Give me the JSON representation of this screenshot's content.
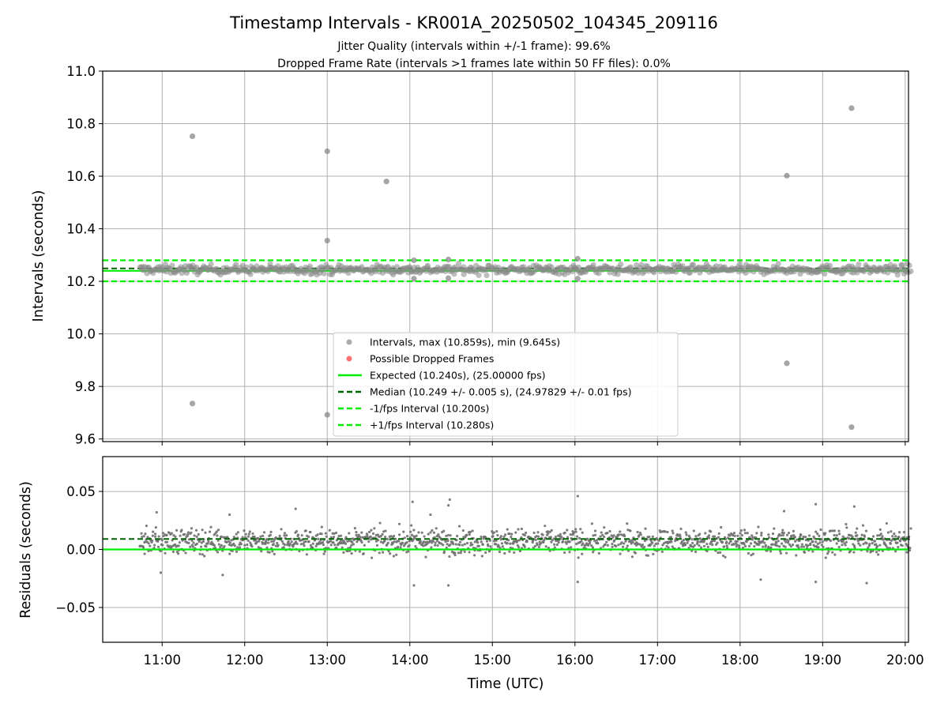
{
  "chart_data": [
    {
      "type": "scatter",
      "title": "Timestamp Intervals - KR001A_20250502_104345_209116",
      "subtitle_lines": [
        "Jitter Quality (intervals within +/-1 frame): 99.6%",
        "Dropped Frame Rate (intervals >1 frames late within 50 FF files): 0.0%"
      ],
      "xlabel": "",
      "ylabel": "Intervals (seconds)",
      "x_range_hours": [
        10.28,
        20.04
      ],
      "ylim": [
        9.59,
        11.0
      ],
      "yticks": [
        9.6,
        9.8,
        10.0,
        10.2,
        10.4,
        10.6,
        10.8,
        11.0
      ],
      "ytick_labels": [
        "9.6",
        "9.8",
        "10.0",
        "10.2",
        "10.4",
        "10.6",
        "10.8",
        "11.0"
      ],
      "grid": true,
      "legend_position": "lower center",
      "legend": [
        "Intervals, max (10.859s), min (9.645s)",
        "Possible Dropped Frames",
        "Expected (10.240s), (25.00000 fps)",
        "Median (10.249 +/- 0.005 s), (24.97829 +/- 0.01 fps)",
        "-1/fps Interval (10.200s)",
        "+1/fps Interval (10.280s)"
      ],
      "lines": {
        "expected": 10.24,
        "median": 10.249,
        "minus_one_fps": 10.2,
        "plus_one_fps": 10.28
      },
      "series": [
        {
          "name": "Intervals, max (10.859s), min (9.645s)",
          "band": {
            "x_start": "10:44",
            "x_end": "20:04",
            "y_center": 10.245,
            "y_spread": 0.025
          },
          "outliers": [
            {
              "x": "11:22",
              "y": 10.752
            },
            {
              "x": "11:22",
              "y": 9.735
            },
            {
              "x": "13:00",
              "y": 10.695
            },
            {
              "x": "13:00",
              "y": 10.355
            },
            {
              "x": "13:00",
              "y": 9.692
            },
            {
              "x": "13:43",
              "y": 10.58
            },
            {
              "x": "14:03",
              "y": 10.28
            },
            {
              "x": "14:03",
              "y": 10.21
            },
            {
              "x": "14:28",
              "y": 10.283
            },
            {
              "x": "14:28",
              "y": 10.212
            },
            {
              "x": "16:02",
              "y": 10.286
            },
            {
              "x": "16:02",
              "y": 10.21
            },
            {
              "x": "18:34",
              "y": 10.602
            },
            {
              "x": "18:34",
              "y": 9.888
            },
            {
              "x": "19:21",
              "y": 10.859
            },
            {
              "x": "19:21",
              "y": 9.645
            }
          ]
        },
        {
          "name": "Possible Dropped Frames",
          "points": []
        }
      ],
      "colors": {
        "intervals": "#888888",
        "dropped": "#ff3333",
        "expected": "#00ee00",
        "median": "#006400",
        "bounds": "#00ee00"
      }
    },
    {
      "type": "scatter",
      "xlabel": "Time (UTC)",
      "ylabel": "Residuals (seconds)",
      "x_range_hours": [
        10.28,
        20.04
      ],
      "xticks": [
        "11:00",
        "12:00",
        "13:00",
        "14:00",
        "15:00",
        "16:00",
        "17:00",
        "18:00",
        "19:00",
        "20:00"
      ],
      "ylim": [
        -0.08,
        0.08
      ],
      "yticks": [
        -0.05,
        0.0,
        0.05
      ],
      "ytick_labels": [
        "−0.05",
        "0.00",
        "0.05"
      ],
      "grid": true,
      "lines": {
        "expected": 0.0,
        "median": 0.009
      },
      "series": [
        {
          "name": "",
          "band": {
            "x_start": "10:44",
            "x_end": "20:04",
            "y_center": 0.007,
            "y_spread": 0.012
          },
          "outliers": [
            {
              "x": "10:56",
              "y": 0.032
            },
            {
              "x": "11:49",
              "y": 0.03
            },
            {
              "x": "12:37",
              "y": 0.035
            },
            {
              "x": "14:02",
              "y": 0.041
            },
            {
              "x": "14:15",
              "y": 0.03
            },
            {
              "x": "14:28",
              "y": 0.038
            },
            {
              "x": "14:29",
              "y": 0.043
            },
            {
              "x": "16:02",
              "y": 0.046
            },
            {
              "x": "18:32",
              "y": 0.033
            },
            {
              "x": "18:55",
              "y": 0.039
            },
            {
              "x": "19:23",
              "y": 0.037
            },
            {
              "x": "14:03",
              "y": -0.031
            },
            {
              "x": "14:28",
              "y": -0.031
            },
            {
              "x": "16:02",
              "y": -0.028
            },
            {
              "x": "18:15",
              "y": -0.026
            },
            {
              "x": "18:55",
              "y": -0.028
            },
            {
              "x": "19:32",
              "y": -0.029
            },
            {
              "x": "10:59",
              "y": -0.02
            },
            {
              "x": "11:44",
              "y": -0.022
            }
          ]
        }
      ],
      "colors": {
        "points": "#707070",
        "expected": "#00ee00",
        "median": "#006400"
      }
    }
  ]
}
